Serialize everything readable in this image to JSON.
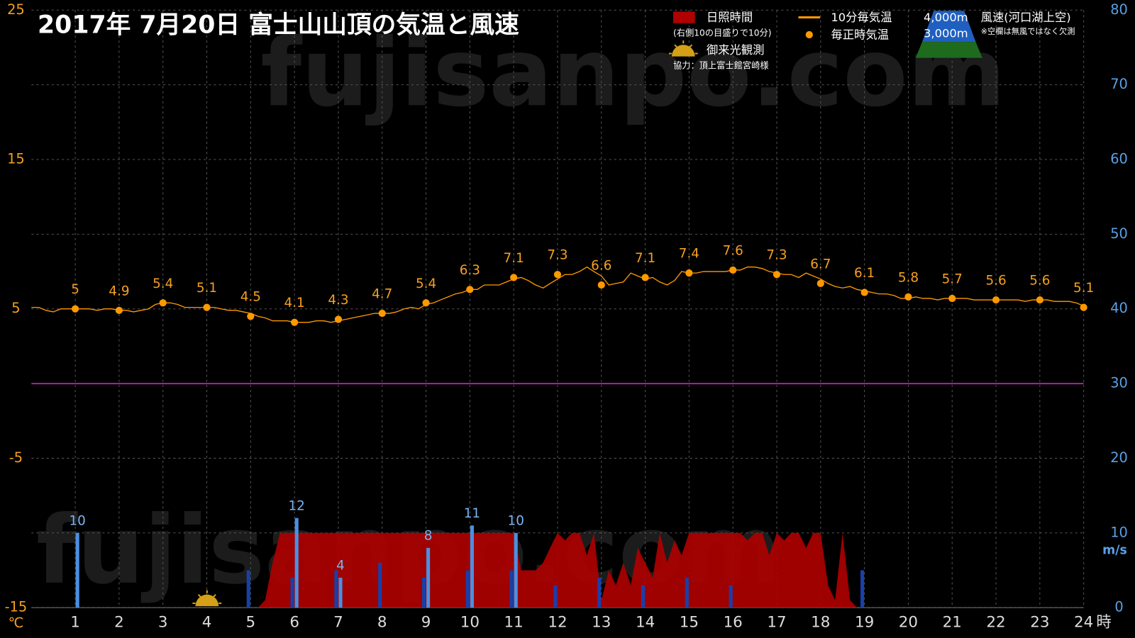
{
  "chart_data": {
    "type": "combo",
    "title": "2017年  7月20日   富士山山頂の気温と風速",
    "xlim": [
      0,
      24
    ],
    "xticks": [
      1,
      2,
      3,
      4,
      5,
      6,
      7,
      8,
      9,
      10,
      11,
      12,
      13,
      14,
      15,
      16,
      17,
      18,
      19,
      20,
      21,
      22,
      23,
      24
    ],
    "x_unit": "時",
    "ylim": [
      -15,
      25
    ],
    "yticks": [
      25,
      15,
      5,
      -5,
      -15
    ],
    "y_unit": "℃",
    "y2lim": [
      0,
      80
    ],
    "y2ticks": [
      0,
      10,
      20,
      30,
      40,
      50,
      60,
      70,
      80
    ],
    "y2_unit": "m/s",
    "freezing_y2tick": 30,
    "grid": true,
    "hours": [
      1,
      2,
      3,
      4,
      5,
      6,
      7,
      8,
      9,
      10,
      11,
      12,
      13,
      14,
      15,
      16,
      17,
      18,
      19,
      20,
      21,
      22,
      23,
      24
    ],
    "x10": [
      0,
      0.17,
      0.33,
      0.5,
      0.67,
      0.83,
      1,
      1.17,
      1.33,
      1.5,
      1.67,
      1.83,
      2,
      2.17,
      2.33,
      2.5,
      2.67,
      2.83,
      3,
      3.17,
      3.33,
      3.5,
      3.67,
      3.83,
      4,
      4.17,
      4.33,
      4.5,
      4.67,
      4.83,
      5,
      5.17,
      5.33,
      5.5,
      5.67,
      5.83,
      6,
      6.17,
      6.33,
      6.5,
      6.67,
      6.83,
      7,
      7.17,
      7.33,
      7.5,
      7.67,
      7.83,
      8,
      8.17,
      8.33,
      8.5,
      8.67,
      8.83,
      9,
      9.17,
      9.33,
      9.5,
      9.67,
      9.83,
      10,
      10.17,
      10.33,
      10.5,
      10.67,
      10.83,
      11,
      11.17,
      11.33,
      11.5,
      11.67,
      11.83,
      12,
      12.17,
      12.33,
      12.5,
      12.67,
      12.83,
      13,
      13.17,
      13.33,
      13.5,
      13.67,
      13.83,
      14,
      14.17,
      14.33,
      14.5,
      14.67,
      14.83,
      15,
      15.17,
      15.33,
      15.5,
      15.67,
      15.83,
      16,
      16.17,
      16.33,
      16.5,
      16.67,
      16.83,
      17,
      17.17,
      17.33,
      17.5,
      17.67,
      17.83,
      18,
      18.17,
      18.33,
      18.5,
      18.67,
      18.83,
      19,
      19.17,
      19.33,
      19.5,
      19.67,
      19.83,
      20,
      20.17,
      20.33,
      20.5,
      20.67,
      20.83,
      21,
      21.17,
      21.33,
      21.5,
      21.67,
      21.83,
      22,
      22.17,
      22.33,
      22.5,
      22.67,
      22.83,
      23,
      23.17,
      23.33,
      23.5,
      23.67,
      23.83,
      24
    ],
    "series": [
      {
        "name": "日照時間",
        "type": "area",
        "axis": "y2",
        "color": "#b00000",
        "values": [
          0,
          0,
          0,
          0,
          0,
          0,
          0,
          0,
          0,
          0,
          0,
          0,
          0,
          0,
          0,
          0,
          0,
          0,
          0,
          0,
          0,
          0,
          0,
          0,
          0,
          0,
          0,
          0,
          0,
          0,
          0,
          0,
          1,
          6,
          10,
          10,
          10,
          10,
          10,
          10,
          10,
          10,
          10,
          10,
          10,
          10,
          10,
          10,
          10,
          10,
          10,
          10,
          10,
          10,
          10,
          10,
          10,
          10,
          10,
          10,
          10,
          10,
          10,
          10,
          10,
          10,
          10,
          5,
          5,
          5,
          6,
          8,
          10,
          9,
          10,
          10,
          7,
          10,
          1,
          5,
          3,
          6,
          3,
          8,
          6,
          4,
          10,
          6,
          9,
          7,
          10,
          10,
          10,
          10,
          10,
          10,
          10,
          10,
          9,
          10,
          10,
          7,
          10,
          9,
          10,
          10,
          8,
          10,
          10,
          3,
          1,
          10,
          1,
          0,
          0,
          0,
          0,
          0,
          0,
          0,
          0,
          0,
          0,
          0,
          0,
          0,
          0,
          0,
          0,
          0,
          0,
          0,
          0,
          0,
          0,
          0,
          0,
          0,
          0,
          0,
          0,
          0,
          0,
          0,
          0
        ]
      },
      {
        "name": "10分毎気温",
        "type": "line",
        "color": "#ff9900",
        "values": [
          5.1,
          5.1,
          4.9,
          4.8,
          5.0,
          5.0,
          5.0,
          5.0,
          5.0,
          4.9,
          5.0,
          5.0,
          4.9,
          4.9,
          4.8,
          4.9,
          5.0,
          5.3,
          5.4,
          5.4,
          5.3,
          5.1,
          5.1,
          5.1,
          5.1,
          5.1,
          5.0,
          4.9,
          4.9,
          4.8,
          4.7,
          4.5,
          4.4,
          4.2,
          4.2,
          4.2,
          4.1,
          4.1,
          4.1,
          4.2,
          4.2,
          4.1,
          4.2,
          4.3,
          4.4,
          4.5,
          4.6,
          4.7,
          4.7,
          4.7,
          4.8,
          5.0,
          5.1,
          5.0,
          5.3,
          5.4,
          5.6,
          5.8,
          6.0,
          6.1,
          6.3,
          6.3,
          6.6,
          6.6,
          6.6,
          6.8,
          7.0,
          7.1,
          6.9,
          6.6,
          6.4,
          6.7,
          7.0,
          7.3,
          7.3,
          7.5,
          7.8,
          7.5,
          7.2,
          6.6,
          6.7,
          6.8,
          7.4,
          7.2,
          7.0,
          7.1,
          6.8,
          6.6,
          6.9,
          7.5,
          7.4,
          7.4,
          7.5,
          7.5,
          7.5,
          7.5,
          7.6,
          7.6,
          7.8,
          7.8,
          7.7,
          7.5,
          7.4,
          7.3,
          7.3,
          7.1,
          7.4,
          7.2,
          7.0,
          6.7,
          6.5,
          6.4,
          6.5,
          6.3,
          6.2,
          6.1,
          6.0,
          6.0,
          5.9,
          5.7,
          5.7,
          5.8,
          5.7,
          5.7,
          5.6,
          5.7,
          5.7,
          5.7,
          5.7,
          5.6,
          5.6,
          5.6,
          5.6,
          5.6,
          5.6,
          5.6,
          5.5,
          5.6,
          5.6,
          5.6,
          5.5,
          5.5,
          5.5,
          5.4,
          5.2,
          5.1
        ]
      },
      {
        "name": "毎正時気温",
        "type": "scatter",
        "color": "#ff9900",
        "values": [
          5,
          4.9,
          5.4,
          5.1,
          4.5,
          4.1,
          4.3,
          4.7,
          5.4,
          6.3,
          7.1,
          7.3,
          6.6,
          7.1,
          7.4,
          7.6,
          7.3,
          6.7,
          6.1,
          5.8,
          5.7,
          5.6,
          5.6,
          5.1
        ]
      },
      {
        "name": "4,000m",
        "type": "bar",
        "axis": "y2",
        "color": "#4a90e2",
        "values": [
          10,
          null,
          null,
          null,
          null,
          12,
          4,
          null,
          8,
          11,
          10,
          null,
          null,
          null,
          null,
          null,
          null,
          null,
          null,
          null,
          null,
          null,
          null,
          null
        ]
      },
      {
        "name": "3,000m",
        "type": "bar",
        "axis": "y2",
        "color": "#1a3fa8",
        "values": [
          null,
          null,
          null,
          null,
          5,
          4,
          5,
          6,
          4,
          5,
          5,
          3,
          4,
          3,
          4,
          3,
          null,
          null,
          5,
          null,
          null,
          null,
          null,
          null
        ]
      }
    ],
    "sunshine_note": "(右側10の目盛りで10分)",
    "wind_label": "風速(河口湖上空)",
    "missing_note": "※空欄は無風ではなく欠測",
    "sunrise_label": "御来光観測",
    "credit": "協力：頂上富士館宮崎様",
    "watermark": "fujisanpo.com"
  }
}
